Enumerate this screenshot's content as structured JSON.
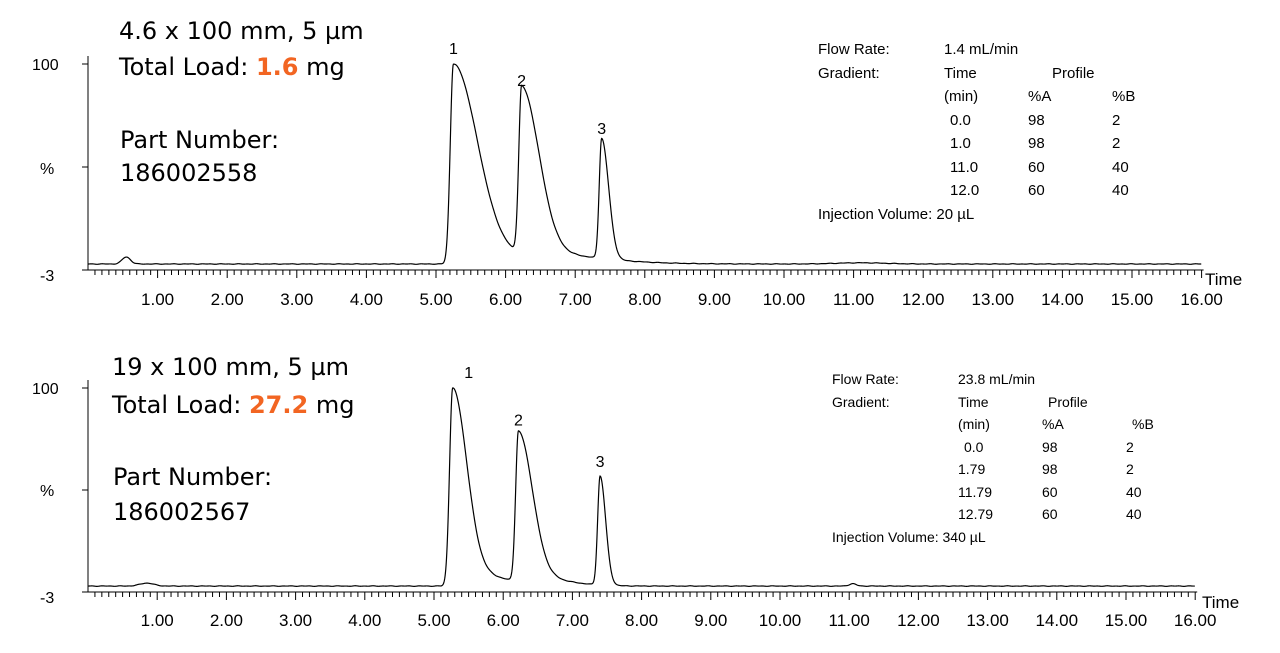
{
  "accent_color": "#f26522",
  "chart_data": [
    {
      "type": "line",
      "column": "4.6 x 100 mm, 5 µm",
      "total_load_label": "Total Load: ",
      "total_load_value": "1.6",
      "total_load_unit": " mg",
      "part_number_label": "Part Number:",
      "part_number": "186002558",
      "xlabel": "Time",
      "ylabel": "%",
      "y_ticks": [
        "100",
        "-3"
      ],
      "xlim": [
        0,
        16
      ],
      "ylim": [
        -3,
        100
      ],
      "x_ticks": [
        "1.00",
        "2.00",
        "3.00",
        "4.00",
        "5.00",
        "6.00",
        "7.00",
        "8.00",
        "9.00",
        "10.00",
        "11.00",
        "12.00",
        "13.00",
        "14.00",
        "15.00",
        "16.00"
      ],
      "peaks": [
        {
          "label": "1",
          "x": 5.25,
          "y": 100,
          "sl": 0.045,
          "sr": 0.34,
          "sr2": 1.3,
          "w2": 0.05
        },
        {
          "label": "2",
          "x": 6.23,
          "y": 84,
          "sl": 0.04,
          "sr": 0.25,
          "sr2": 0.9,
          "w2": 0.04
        },
        {
          "label": "3",
          "x": 7.38,
          "y": 60,
          "sl": 0.035,
          "sr": 0.1,
          "sr2": 0.4,
          "w2": 0.0
        }
      ],
      "bumps": [
        {
          "x": 0.55,
          "y": 3.5,
          "s": 0.06
        },
        {
          "x": 11.1,
          "y": 0.6,
          "s": 0.35
        }
      ],
      "conditions": {
        "flow_rate_label": "Flow Rate:",
        "flow_rate": "1.4 mL/min",
        "gradient_label": "Gradient:",
        "time_header": "Time",
        "profile_header": "Profile",
        "min_header": "(min)",
        "a_header": "%A",
        "b_header": "%B",
        "rows": [
          {
            "time": "0.0",
            "a": "98",
            "b": "2"
          },
          {
            "time": "1.0",
            "a": "98",
            "b": "2"
          },
          {
            "time": "11.0",
            "a": "60",
            "b": "40"
          },
          {
            "time": "12.0",
            "a": "60",
            "b": "40"
          }
        ],
        "injection": "Injection Volume: 20 µL"
      }
    },
    {
      "type": "line",
      "column": "19 x 100 mm, 5 µm",
      "total_load_label": "Total Load: ",
      "total_load_value": "27.2",
      "total_load_unit": " mg",
      "part_number_label": "Part Number:",
      "part_number": "186002567",
      "xlabel": "Time",
      "ylabel": "%",
      "y_ticks": [
        "100",
        "-3"
      ],
      "xlim": [
        0,
        16
      ],
      "ylim": [
        -3,
        100
      ],
      "x_ticks": [
        "1.00",
        "2.00",
        "3.00",
        "4.00",
        "5.00",
        "6.00",
        "7.00",
        "8.00",
        "9.00",
        "10.00",
        "11.00",
        "12.00",
        "13.00",
        "14.00",
        "15.00",
        "16.00"
      ],
      "peaks": [
        {
          "label": "1",
          "x": 5.27,
          "y": 100,
          "sl": 0.045,
          "sr": 0.2,
          "sr2": 0.6,
          "w2": 0.08
        },
        {
          "label": "2",
          "x": 6.22,
          "y": 76,
          "sl": 0.04,
          "sr": 0.2,
          "sr2": 0.55,
          "w2": 0.07
        },
        {
          "label": "3",
          "x": 7.4,
          "y": 55,
          "sl": 0.035,
          "sr": 0.08,
          "sr2": 0.3,
          "w2": 0.0
        }
      ],
      "bumps": [
        {
          "x": 0.85,
          "y": 1.5,
          "s": 0.1
        },
        {
          "x": 11.05,
          "y": 1.2,
          "s": 0.05
        }
      ],
      "conditions": {
        "flow_rate_label": "Flow Rate:",
        "flow_rate": "23.8 mL/min",
        "gradient_label": "Gradient:",
        "time_header": "Time",
        "profile_header": "Profile",
        "min_header": "(min)",
        "a_header": "%A",
        "b_header": "%B",
        "rows": [
          {
            "time": "0.0",
            "a": "98",
            "b": "2"
          },
          {
            "time": "1.79",
            "a": "98",
            "b": "2"
          },
          {
            "time": "11.79",
            "a": "60",
            "b": "40"
          },
          {
            "time": "12.79",
            "a": "60",
            "b": "40"
          }
        ],
        "injection": "Injection Volume: 340 µL"
      }
    }
  ]
}
